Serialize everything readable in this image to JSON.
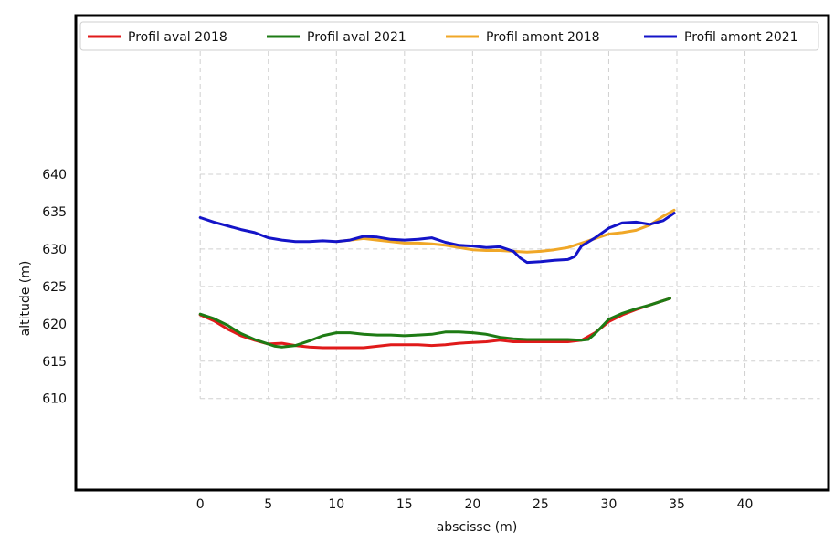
{
  "chart_data": {
    "type": "line",
    "xlabel": "abscisse (m)",
    "ylabel": "altitude (m)",
    "xlim": [
      -9,
      46
    ],
    "ylim": [
      598,
      661
    ],
    "x_ticks": [
      0,
      5,
      10,
      15,
      20,
      25,
      30,
      35,
      40
    ],
    "y_ticks": [
      610,
      615,
      620,
      625,
      630,
      635,
      640
    ],
    "grid": true,
    "legend_position": "top",
    "series": [
      {
        "name": "Profil aval 2018",
        "color": "#e01a1a",
        "points": [
          [
            0,
            621.2
          ],
          [
            1,
            620.4
          ],
          [
            2,
            619.3
          ],
          [
            3,
            618.4
          ],
          [
            4,
            617.8
          ],
          [
            5,
            617.3
          ],
          [
            6,
            617.4
          ],
          [
            7,
            617.1
          ],
          [
            8,
            616.9
          ],
          [
            9,
            616.8
          ],
          [
            10,
            616.8
          ],
          [
            11,
            616.8
          ],
          [
            12,
            616.8
          ],
          [
            13,
            617.0
          ],
          [
            14,
            617.2
          ],
          [
            15,
            617.2
          ],
          [
            16,
            617.2
          ],
          [
            17,
            617.1
          ],
          [
            18,
            617.2
          ],
          [
            19,
            617.4
          ],
          [
            20,
            617.5
          ],
          [
            21,
            617.6
          ],
          [
            22,
            617.8
          ],
          [
            23,
            617.6
          ],
          [
            24,
            617.6
          ],
          [
            25,
            617.6
          ],
          [
            26,
            617.6
          ],
          [
            27,
            617.6
          ],
          [
            28,
            617.8
          ],
          [
            29,
            618.8
          ],
          [
            30,
            620.3
          ],
          [
            31,
            621.2
          ],
          [
            32,
            621.9
          ],
          [
            33,
            622.5
          ],
          [
            34,
            623.1
          ],
          [
            34.5,
            623.4
          ]
        ]
      },
      {
        "name": "Profil aval 2021",
        "color": "#1e7b14",
        "points": [
          [
            0,
            621.3
          ],
          [
            1,
            620.7
          ],
          [
            2,
            619.8
          ],
          [
            3,
            618.7
          ],
          [
            4,
            617.9
          ],
          [
            5,
            617.3
          ],
          [
            5.5,
            617.0
          ],
          [
            6,
            616.9
          ],
          [
            7,
            617.1
          ],
          [
            8,
            617.7
          ],
          [
            9,
            618.4
          ],
          [
            10,
            618.8
          ],
          [
            11,
            618.8
          ],
          [
            12,
            618.6
          ],
          [
            13,
            618.5
          ],
          [
            14,
            618.5
          ],
          [
            15,
            618.4
          ],
          [
            16,
            618.5
          ],
          [
            17,
            618.6
          ],
          [
            18,
            618.9
          ],
          [
            19,
            618.9
          ],
          [
            20,
            618.8
          ],
          [
            21,
            618.6
          ],
          [
            22,
            618.2
          ],
          [
            23,
            618.0
          ],
          [
            24,
            617.9
          ],
          [
            25,
            617.9
          ],
          [
            26,
            617.9
          ],
          [
            27,
            617.9
          ],
          [
            28,
            617.8
          ],
          [
            28.5,
            617.9
          ],
          [
            29,
            618.7
          ],
          [
            30,
            620.6
          ],
          [
            31,
            621.4
          ],
          [
            32,
            622.0
          ],
          [
            33,
            622.5
          ],
          [
            34,
            623.1
          ],
          [
            34.5,
            623.4
          ]
        ]
      },
      {
        "name": "Profil amont 2018",
        "color": "#f0a727",
        "points": [
          [
            10,
            631.0
          ],
          [
            11,
            631.2
          ],
          [
            12,
            631.4
          ],
          [
            13,
            631.2
          ],
          [
            14,
            631.0
          ],
          [
            15,
            630.8
          ],
          [
            16,
            630.8
          ],
          [
            17,
            630.7
          ],
          [
            18,
            630.5
          ],
          [
            19,
            630.2
          ],
          [
            20,
            629.9
          ],
          [
            21,
            629.8
          ],
          [
            22,
            629.8
          ],
          [
            23,
            629.7
          ],
          [
            24,
            629.6
          ],
          [
            25,
            629.7
          ],
          [
            26,
            629.9
          ],
          [
            27,
            630.2
          ],
          [
            28,
            630.8
          ],
          [
            29,
            631.4
          ],
          [
            30,
            632.0
          ],
          [
            31,
            632.2
          ],
          [
            32,
            632.5
          ],
          [
            33,
            633.2
          ],
          [
            34,
            634.4
          ],
          [
            34.8,
            635.2
          ]
        ]
      },
      {
        "name": "Profil amont 2021",
        "color": "#1414c8",
        "points": [
          [
            0,
            634.2
          ],
          [
            1,
            633.6
          ],
          [
            2,
            633.1
          ],
          [
            3,
            632.6
          ],
          [
            4,
            632.2
          ],
          [
            5,
            631.5
          ],
          [
            6,
            631.2
          ],
          [
            7,
            631.0
          ],
          [
            8,
            631.0
          ],
          [
            9,
            631.1
          ],
          [
            10,
            631.0
          ],
          [
            11,
            631.2
          ],
          [
            12,
            631.7
          ],
          [
            13,
            631.6
          ],
          [
            14,
            631.3
          ],
          [
            15,
            631.2
          ],
          [
            16,
            631.3
          ],
          [
            17,
            631.5
          ],
          [
            18,
            630.9
          ],
          [
            19,
            630.5
          ],
          [
            20,
            630.4
          ],
          [
            21,
            630.2
          ],
          [
            22,
            630.3
          ],
          [
            23,
            629.7
          ],
          [
            23.5,
            628.8
          ],
          [
            24,
            628.2
          ],
          [
            25,
            628.3
          ],
          [
            26,
            628.5
          ],
          [
            27,
            628.6
          ],
          [
            27.5,
            629.0
          ],
          [
            28,
            630.4
          ],
          [
            29,
            631.5
          ],
          [
            30,
            632.8
          ],
          [
            31,
            633.5
          ],
          [
            32,
            633.6
          ],
          [
            33,
            633.3
          ],
          [
            34,
            633.8
          ],
          [
            34.8,
            634.8
          ]
        ]
      }
    ]
  }
}
